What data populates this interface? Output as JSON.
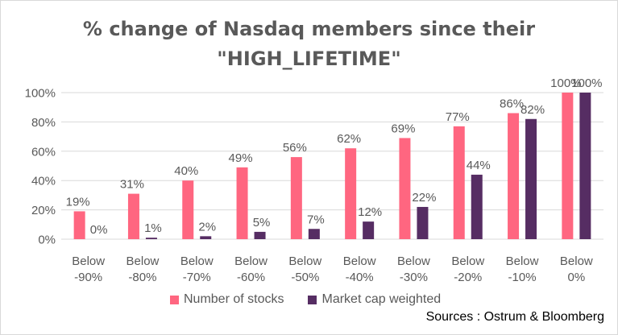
{
  "chart_data": {
    "type": "bar",
    "title": "% change of Nasdaq members since their",
    "subtitle": "\"HIGH_LIFETIME\"",
    "categories": [
      [
        "Below",
        "-90%"
      ],
      [
        "Below",
        "-80%"
      ],
      [
        "Below",
        "-70%"
      ],
      [
        "Below",
        "-60%"
      ],
      [
        "Below",
        "-50%"
      ],
      [
        "Below",
        "-40%"
      ],
      [
        "Below",
        "-30%"
      ],
      [
        "Below",
        "-20%"
      ],
      [
        "Below",
        "-10%"
      ],
      [
        "Below",
        "0%"
      ]
    ],
    "series": [
      {
        "name": "Number of stocks",
        "color": "#ff6680",
        "values": [
          19,
          31,
          40,
          49,
          56,
          62,
          69,
          77,
          86,
          100
        ],
        "labels": [
          "19%",
          "31%",
          "40%",
          "49%",
          "56%",
          "62%",
          "69%",
          "77%",
          "86%",
          "100%"
        ]
      },
      {
        "name": "Market cap weighted",
        "color": "#562d63",
        "values": [
          0,
          1,
          2,
          5,
          7,
          12,
          22,
          44,
          82,
          100
        ],
        "labels": [
          "0%",
          "1%",
          "2%",
          "5%",
          "7%",
          "12%",
          "22%",
          "44%",
          "82%",
          "100%"
        ]
      }
    ],
    "ylim": [
      0,
      100
    ],
    "yticks": [
      0,
      20,
      40,
      60,
      80,
      100
    ],
    "ytick_labels": [
      "0%",
      "20%",
      "40%",
      "60%",
      "80%",
      "100%"
    ],
    "xlabel": "",
    "ylabel": "",
    "grid": true,
    "gridline_color": "#d9d9d9",
    "axis_text_color": "#595959",
    "legend_position": "bottom"
  },
  "source_note": "Sources : Ostrum &  Bloomberg"
}
